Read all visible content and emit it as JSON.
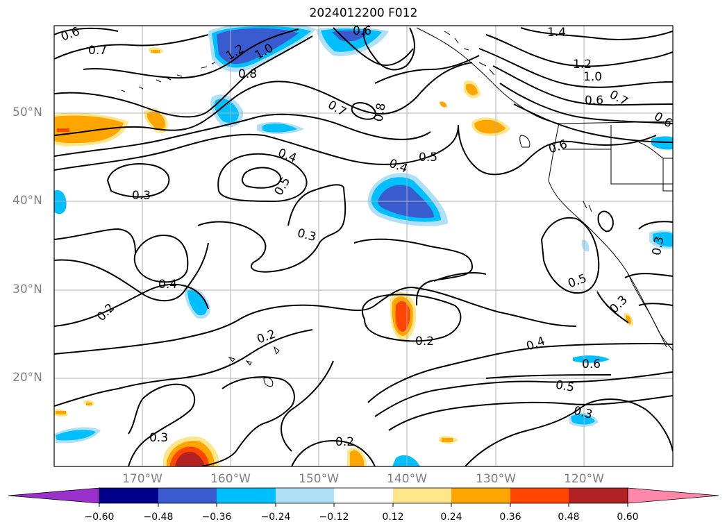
{
  "title": "2024012200 F012",
  "lat_labels": [
    "50°N",
    "40°N",
    "30°N",
    "20°N"
  ],
  "lon_labels": [
    "170°W",
    "160°W",
    "150°W",
    "140°W",
    "130°W",
    "120°W"
  ],
  "contour_labels": [
    "0.6",
    "0.7",
    "1.4",
    "1.2",
    "1.0",
    "0.6",
    "0.7",
    "0.8",
    "0.8",
    "0.7",
    "0.5",
    "0.4",
    "0.5",
    "0.4",
    "0.3",
    "0.3",
    "0.4",
    "0.2",
    "0.2",
    "0.2",
    "0.4",
    "0.6",
    "0.5",
    "0.3",
    "0.3",
    "0.2",
    "0.5",
    "0.6",
    "0.3",
    "0.6",
    "0.3",
    "1.0",
    "1.2",
    "0.6"
  ],
  "colorbar": {
    "ticks": [
      "−0.60",
      "−0.48",
      "−0.36",
      "−0.24",
      "−0.12",
      "0.12",
      "0.24",
      "0.36",
      "0.48",
      "0.60"
    ],
    "colors": [
      "#9932cc",
      "#00008b",
      "#3a5bd0",
      "#00bfff",
      "#b0e0f8",
      "#ffffff",
      "#ffe68a",
      "#ffa500",
      "#ff4500",
      "#b22222",
      "#ff88aa"
    ]
  },
  "palette": {
    "neg_strong": "#3a5bd0",
    "neg_mid": "#00bfff",
    "neg_weak": "#b0e0f8",
    "pos_weak": "#ffe68a",
    "pos_mid": "#ffa500",
    "pos_strong": "#ff4500",
    "pos_max": "#b22222"
  }
}
